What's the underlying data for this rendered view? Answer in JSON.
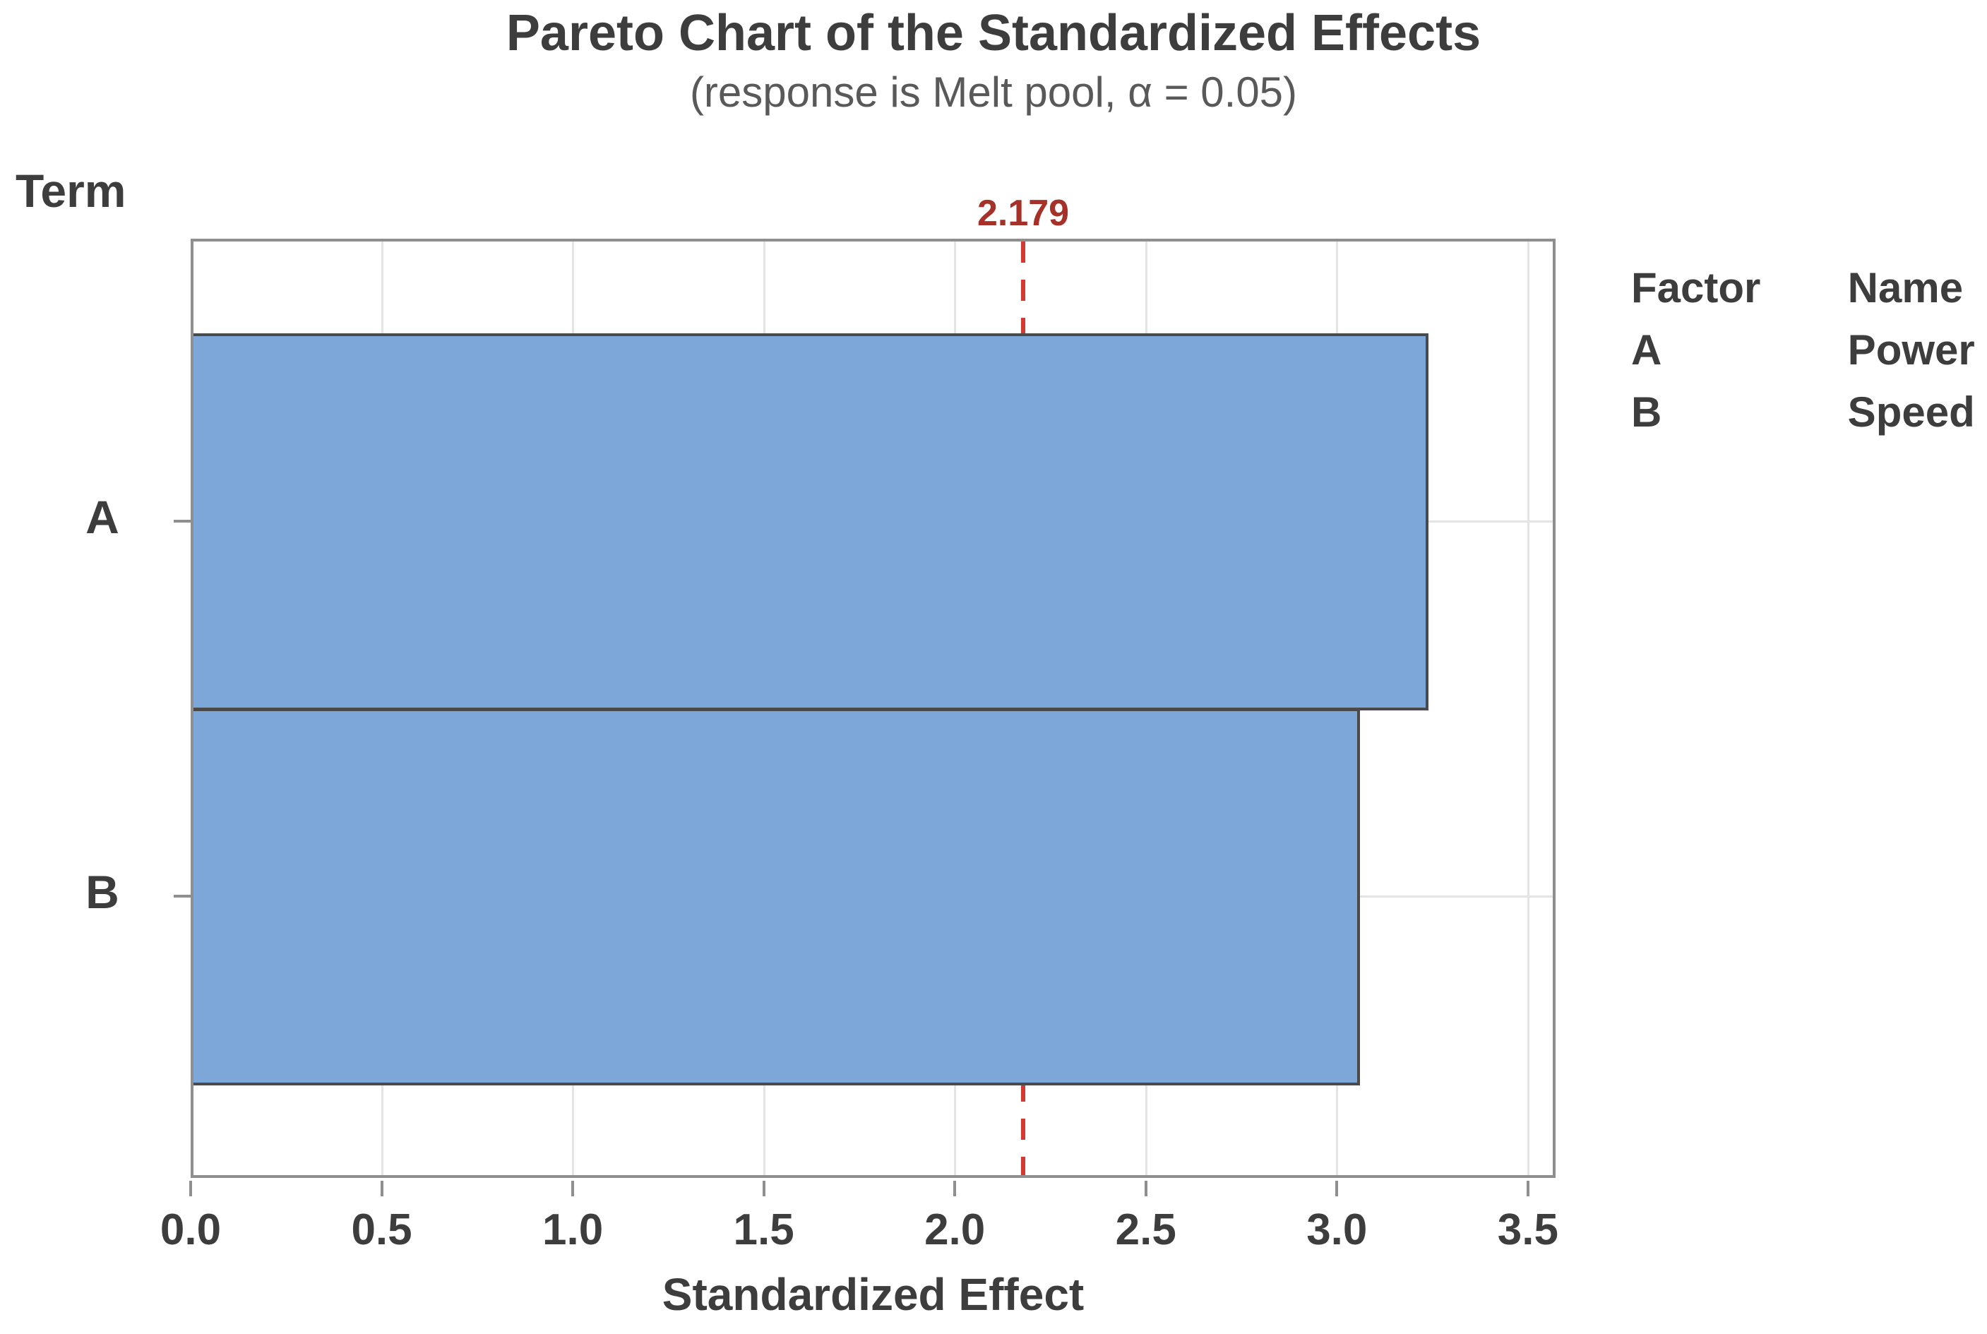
{
  "chart_data": {
    "type": "bar",
    "orientation": "horizontal",
    "title": "Pareto Chart of the Standardized Effects",
    "subtitle": "(response is Melt pool, α = 0.05)",
    "xlabel": "Standardized Effect",
    "ylabel": "Term",
    "categories": [
      "A",
      "B"
    ],
    "values": [
      3.24,
      3.06
    ],
    "xlim": [
      0,
      3.5
    ],
    "x_ticks": [
      "0.0",
      "0.5",
      "1.0",
      "1.5",
      "2.0",
      "2.5",
      "3.0",
      "3.5"
    ],
    "grid": "on",
    "legend_position": "right",
    "reference_line": {
      "value": 2.179,
      "label": "2.179"
    },
    "colors": {
      "bar_fill": "#7da7d8",
      "bar_border": "#4a4a4a",
      "reference_line": "#d43a31",
      "reference_label": "#a53129",
      "axis_text": "#3d3d3d",
      "subtitle_text": "#595959"
    }
  },
  "legend": {
    "columns": [
      "Factor",
      "Name"
    ],
    "rows": [
      [
        "A",
        "Power"
      ],
      [
        "B",
        "Speed"
      ]
    ]
  }
}
